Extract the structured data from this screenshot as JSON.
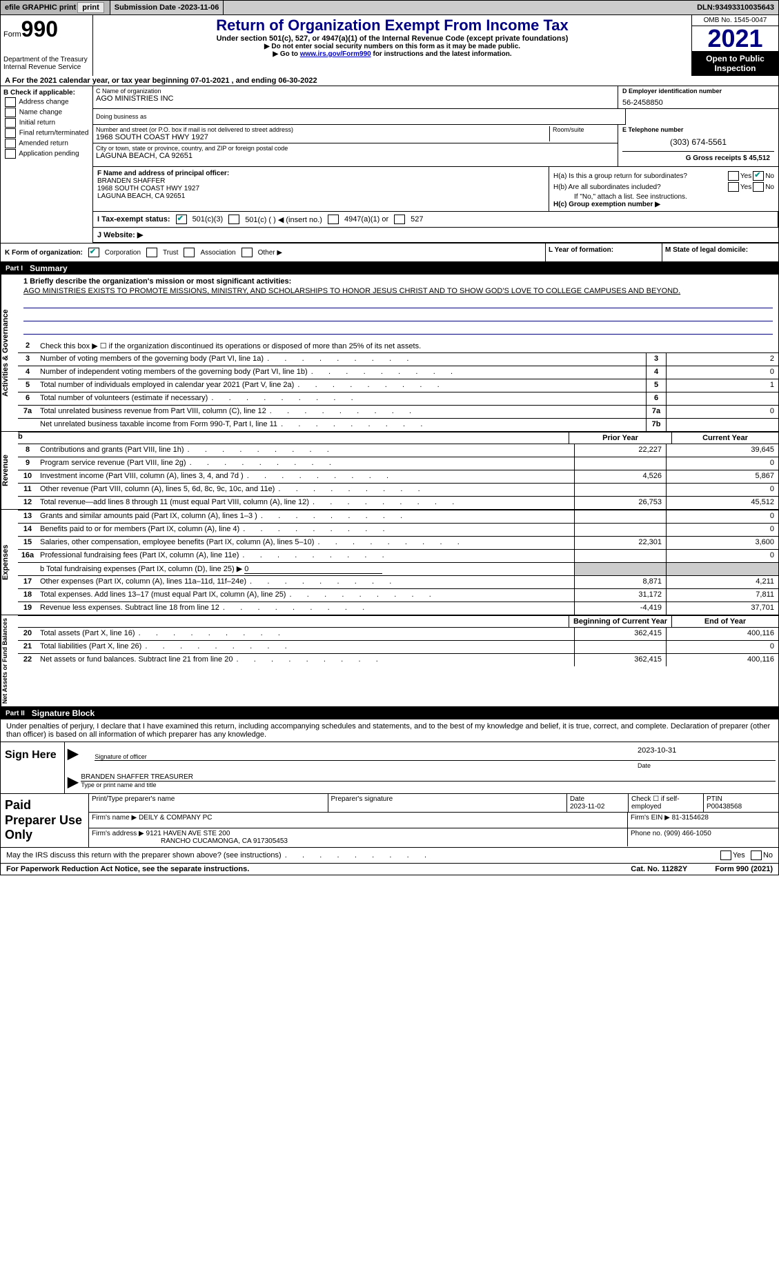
{
  "topbar": {
    "efile": "efile GRAPHIC print",
    "submission_label": "Submission Date - ",
    "submission_date": "2023-11-06",
    "dln_label": "DLN: ",
    "dln": "93493310035643"
  },
  "header": {
    "form_word": "Form",
    "form_num": "990",
    "dept": "Department of the Treasury",
    "irs": "Internal Revenue Service",
    "title": "Return of Organization Exempt From Income Tax",
    "subtitle": "Under section 501(c), 527, or 4947(a)(1) of the Internal Revenue Code (except private foundations)",
    "note1": "▶ Do not enter social security numbers on this form as it may be made public.",
    "note2_pre": "▶ Go to ",
    "note2_link": "www.irs.gov/Form990",
    "note2_post": " for instructions and the latest information.",
    "omb": "OMB No. 1545-0047",
    "year": "2021",
    "otp": "Open to Public Inspection"
  },
  "lineA": "A For the 2021 calendar year, or tax year beginning 07-01-2021    , and ending 06-30-2022",
  "sectionB": {
    "title": "B Check if applicable:",
    "opts": [
      "Address change",
      "Name change",
      "Initial return",
      "Final return/terminated",
      "Amended return",
      "Application pending"
    ]
  },
  "sectionC": {
    "name_label": "C Name of organization",
    "name": "AGO MINISTRIES INC",
    "dba_label": "Doing business as",
    "addr_label": "Number and street (or P.O. box if mail is not delivered to street address)",
    "room_label": "Room/suite",
    "addr": "1968 SOUTH COAST HWY 1927",
    "city_label": "City or town, state or province, country, and ZIP or foreign postal code",
    "city": "LAGUNA BEACH, CA  92651"
  },
  "sectionD": {
    "label": "D Employer identification number",
    "value": "56-2458850"
  },
  "sectionE": {
    "label": "E Telephone number",
    "value": "(303) 674-5561"
  },
  "sectionG": {
    "label": "G Gross receipts $ ",
    "value": "45,512"
  },
  "sectionF": {
    "label": "F Name and address of principal officer:",
    "name": "BRANDEN SHAFFER",
    "addr1": "1968 SOUTH COAST HWY 1927",
    "addr2": "LAGUNA BEACH, CA  92651"
  },
  "sectionH": {
    "a_label": "H(a)  Is this a group return for subordinates?",
    "b_label": "H(b)  Are all subordinates included?",
    "b_note": "If \"No,\" attach a list. See instructions.",
    "c_label": "H(c)  Group exemption number ▶",
    "yes": "Yes",
    "no": "No"
  },
  "sectionI": {
    "label": "I    Tax-exempt status:",
    "opts": [
      "501(c)(3)",
      "501(c) (   ) ◀ (insert no.)",
      "4947(a)(1) or",
      "527"
    ]
  },
  "sectionJ": {
    "label": "J    Website: ▶"
  },
  "sectionK": {
    "label": "K Form of organization:",
    "opts": [
      "Corporation",
      "Trust",
      "Association",
      "Other ▶"
    ]
  },
  "sectionL": {
    "label": "L Year of formation:"
  },
  "sectionM": {
    "label": "M State of legal domicile:"
  },
  "partI": {
    "tag": "Part I",
    "title": "Summary",
    "line1_label": "1   Briefly describe the organization's mission or most significant activities:",
    "mission": "AGO MINISTRIES EXISTS TO PROMOTE MISSIONS, MINISTRY, AND SCHOLARSHIPS TO HONOR JESUS CHRIST AND TO SHOW GOD'S LOVE TO COLLEGE CAMPUSES AND BEYOND.",
    "line2": "Check this box ▶ ☐  if the organization discontinued its operations or disposed of more than 25% of its net assets.",
    "lines_single": [
      {
        "n": "3",
        "label": "Number of voting members of the governing body (Part VI, line 1a)",
        "box": "3",
        "val": "2"
      },
      {
        "n": "4",
        "label": "Number of independent voting members of the governing body (Part VI, line 1b)",
        "box": "4",
        "val": "0"
      },
      {
        "n": "5",
        "label": "Total number of individuals employed in calendar year 2021 (Part V, line 2a)",
        "box": "5",
        "val": "1"
      },
      {
        "n": "6",
        "label": "Total number of volunteers (estimate if necessary)",
        "box": "6",
        "val": ""
      },
      {
        "n": "7a",
        "label": "Total unrelated business revenue from Part VIII, column (C), line 12",
        "box": "7a",
        "val": "0"
      },
      {
        "n": "",
        "label": "Net unrelated business taxable income from Form 990-T, Part I, line 11",
        "box": "7b",
        "val": ""
      }
    ],
    "py_label": "Prior Year",
    "cy_label": "Current Year",
    "lines_pycy": [
      {
        "n": "8",
        "label": "Contributions and grants (Part VIII, line 1h)",
        "py": "22,227",
        "cy": "39,645"
      },
      {
        "n": "9",
        "label": "Program service revenue (Part VIII, line 2g)",
        "py": "",
        "cy": "0"
      },
      {
        "n": "10",
        "label": "Investment income (Part VIII, column (A), lines 3, 4, and 7d )",
        "py": "4,526",
        "cy": "5,867"
      },
      {
        "n": "11",
        "label": "Other revenue (Part VIII, column (A), lines 5, 6d, 8c, 9c, 10c, and 11e)",
        "py": "",
        "cy": "0"
      },
      {
        "n": "12",
        "label": "Total revenue—add lines 8 through 11 (must equal Part VIII, column (A), line 12)",
        "py": "26,753",
        "cy": "45,512"
      }
    ],
    "lines_exp": [
      {
        "n": "13",
        "label": "Grants and similar amounts paid (Part IX, column (A), lines 1–3 )",
        "py": "",
        "cy": "0"
      },
      {
        "n": "14",
        "label": "Benefits paid to or for members (Part IX, column (A), line 4)",
        "py": "",
        "cy": "0"
      },
      {
        "n": "15",
        "label": "Salaries, other compensation, employee benefits (Part IX, column (A), lines 5–10)",
        "py": "22,301",
        "cy": "3,600"
      },
      {
        "n": "16a",
        "label": "Professional fundraising fees (Part IX, column (A), line 11e)",
        "py": "",
        "cy": "0"
      }
    ],
    "line16b_pre": "b   Total fundraising expenses (Part IX, column (D), line 25) ▶",
    "line16b_val": "0",
    "lines_exp2": [
      {
        "n": "17",
        "label": "Other expenses (Part IX, column (A), lines 11a–11d, 11f–24e)",
        "py": "8,871",
        "cy": "4,211"
      },
      {
        "n": "18",
        "label": "Total expenses. Add lines 13–17 (must equal Part IX, column (A), line 25)",
        "py": "31,172",
        "cy": "7,811"
      },
      {
        "n": "19",
        "label": "Revenue less expenses. Subtract line 18 from line 12",
        "py": "-4,419",
        "cy": "37,701"
      }
    ],
    "bocy_label": "Beginning of Current Year",
    "eoy_label": "End of Year",
    "lines_net": [
      {
        "n": "20",
        "label": "Total assets (Part X, line 16)",
        "py": "362,415",
        "cy": "400,116"
      },
      {
        "n": "21",
        "label": "Total liabilities (Part X, line 26)",
        "py": "",
        "cy": "0"
      },
      {
        "n": "22",
        "label": "Net assets or fund balances. Subtract line 21 from line 20",
        "py": "362,415",
        "cy": "400,116"
      }
    ],
    "vtabs": [
      "Activities & Governance",
      "Revenue",
      "Expenses",
      "Net Assets or Fund Balances"
    ]
  },
  "partII": {
    "tag": "Part II",
    "title": "Signature Block",
    "penalty": "Under penalties of perjury, I declare that I have examined this return, including accompanying schedules and statements, and to the best of my knowledge and belief, it is true, correct, and complete. Declaration of preparer (other than officer) is based on all information of which preparer has any knowledge.",
    "sign_here": "Sign Here",
    "sig_officer": "Signature of officer",
    "sig_date": "2023-10-31",
    "date_label": "Date",
    "officer_name": "BRANDEN SHAFFER  TREASURER",
    "type_label": "Type or print name and title",
    "paid": "Paid Preparer Use Only",
    "pp_name_label": "Print/Type preparer's name",
    "pp_sig_label": "Preparer's signature",
    "pp_date_label": "Date",
    "pp_date": "2023-11-02",
    "pp_check": "Check ☐ if self-employed",
    "ptin_label": "PTIN",
    "ptin": "P00438568",
    "firm_name_label": "Firm's name    ▶ ",
    "firm_name": "DEILY & COMPANY PC",
    "firm_ein_label": "Firm's EIN ▶ ",
    "firm_ein": "81-3154628",
    "firm_addr_label": "Firm's address ▶ ",
    "firm_addr1": "9121 HAVEN AVE STE 200",
    "firm_addr2": "RANCHO CUCAMONGA, CA  917305453",
    "phone_label": "Phone no. ",
    "phone": "(909) 466-1050",
    "may_irs": "May the IRS discuss this return with the preparer shown above? (see instructions)",
    "yes": "Yes",
    "no": "No"
  },
  "footer": {
    "pra": "For Paperwork Reduction Act Notice, see the separate instructions.",
    "cat": "Cat. No. 11282Y",
    "form": "Form 990 (2021)"
  }
}
